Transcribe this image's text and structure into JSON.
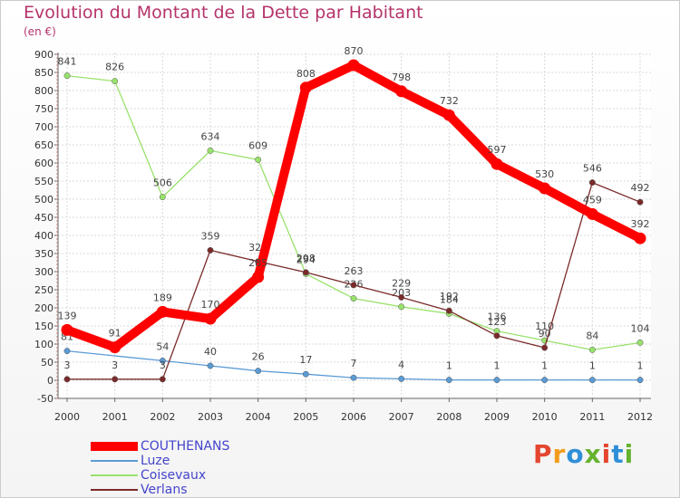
{
  "header": {
    "title": "Evolution du Montant de la Dette par Habitant",
    "subtitle": "(en €)"
  },
  "logo": {
    "text": "Proxiti",
    "colors": [
      "#e4462f",
      "#f29b1c",
      "#2f8fd8",
      "#66b32e",
      "#e4462f",
      "#2f8fd8",
      "#66b32e"
    ]
  },
  "chart_data": {
    "type": "line",
    "title": "Evolution du Montant de la Dette par Habitant",
    "subtitle": "(en €)",
    "xlabel": "",
    "ylabel": "",
    "x": [
      "2000",
      "2001",
      "2002",
      "2003",
      "2004",
      "2005",
      "2006",
      "2007",
      "2008",
      "2009",
      "2010",
      "2011",
      "2012"
    ],
    "ylim": [
      -50,
      900
    ],
    "yticks": [
      -50,
      0,
      50,
      100,
      150,
      200,
      250,
      300,
      350,
      400,
      450,
      500,
      550,
      600,
      650,
      700,
      750,
      800,
      850,
      900
    ],
    "grid": true,
    "legend_position": "bottom-left",
    "series": [
      {
        "name": "Luze",
        "color": "#5b9bd5",
        "values": [
          81,
          null,
          54,
          40,
          26,
          17,
          7,
          4,
          1,
          1,
          1,
          1,
          1
        ],
        "labels": [
          "81",
          "",
          "54",
          "40",
          "26",
          "17",
          "7",
          "4",
          "1",
          "1",
          "1",
          "1",
          "1"
        ]
      },
      {
        "name": "Coisevaux",
        "color": "#99e26c",
        "values": [
          841,
          826,
          506,
          634,
          609,
          294,
          226,
          203,
          184,
          136,
          110,
          84,
          104
        ],
        "labels": [
          "841",
          "826",
          "506",
          "634",
          "609",
          "294",
          "226",
          "203",
          "184",
          "136",
          "110",
          "84",
          "104"
        ]
      },
      {
        "name": "Verlans",
        "color": "#7b2a2a",
        "values": [
          3,
          3,
          3,
          359,
          328,
          298,
          263,
          229,
          192,
          123,
          90,
          546,
          492
        ],
        "labels": [
          "3",
          "3",
          "3",
          "359",
          "328",
          "298",
          "263",
          "229",
          "192",
          "123",
          "90",
          "546",
          "492"
        ]
      },
      {
        "name": "COUTHENANS",
        "color": "#ff0000",
        "values": [
          139,
          91,
          189,
          170,
          285,
          808,
          870,
          798,
          732,
          597,
          530,
          459,
          392
        ],
        "labels": [
          "139",
          "91",
          "189",
          "170",
          "285",
          "808",
          "870",
          "798",
          "732",
          "597",
          "530",
          "459",
          "392"
        ]
      }
    ]
  },
  "legend": {
    "items": [
      {
        "label": "COUTHENANS",
        "color": "#ff0000"
      },
      {
        "label": "Luze",
        "color": "#5b9bd5"
      },
      {
        "label": "Coisevaux",
        "color": "#99e26c"
      },
      {
        "label": "Verlans",
        "color": "#7b2a2a"
      }
    ]
  }
}
